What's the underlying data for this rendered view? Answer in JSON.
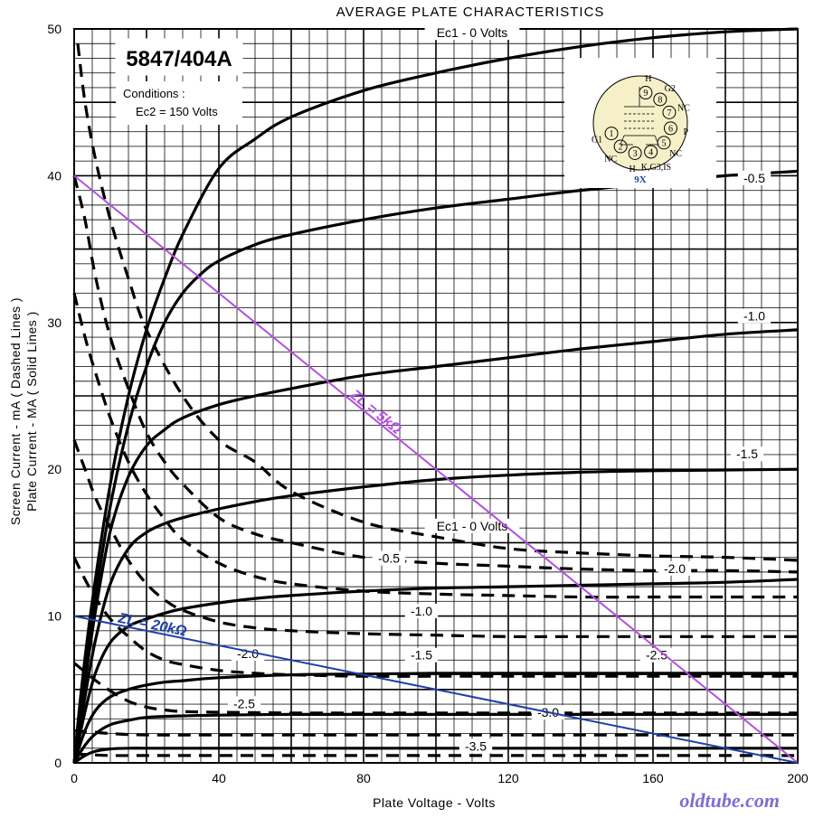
{
  "chart_data": {
    "type": "line",
    "title": "AVERAGE PLATE CHARACTERISTICS",
    "tube": "5847/404A",
    "conditions_label": "Conditions :",
    "conditions_value": "Ec2 = 150 Volts",
    "xlabel": "Plate Voltage - Volts",
    "ylabel_line1": "Screen Current - mA ( Dashed Lines )",
    "ylabel_line2": "Plate Current - MA ( Solid Lines )",
    "xlim": [
      0,
      200
    ],
    "ylim": [
      0,
      50
    ],
    "x_ticks": [
      "0",
      "40",
      "80",
      "120",
      "160",
      "200"
    ],
    "y_ticks": [
      "0",
      "10",
      "20",
      "30",
      "40",
      "50"
    ],
    "grid": true,
    "plate_series": [
      {
        "label": "Ec1 - 0 Volts",
        "line": "solid",
        "x": [
          0,
          2,
          5,
          10,
          15,
          20,
          25,
          30,
          40,
          50,
          60,
          80,
          100,
          120,
          140,
          160,
          180,
          200
        ],
        "y": [
          0,
          5,
          11,
          19,
          25,
          29.5,
          33,
          36,
          40.5,
          42.5,
          44,
          45.8,
          47,
          48,
          48.8,
          49.4,
          49.8,
          50
        ]
      },
      {
        "label": "-0.5",
        "line": "solid",
        "x": [
          0,
          3,
          6,
          10,
          15,
          20,
          25,
          30,
          35,
          40,
          50,
          60,
          80,
          100,
          120,
          140,
          160,
          180,
          200
        ],
        "y": [
          0,
          6,
          11.5,
          17.5,
          23,
          27,
          30,
          32,
          33.3,
          34.2,
          35.3,
          36,
          37,
          37.8,
          38.4,
          39,
          39.5,
          40,
          40.3
        ]
      },
      {
        "label": "-1.0",
        "line": "solid",
        "x": [
          0,
          3,
          6,
          10,
          15,
          20,
          25,
          30,
          40,
          50,
          60,
          80,
          100,
          120,
          140,
          160,
          180,
          200
        ],
        "y": [
          0,
          5.5,
          10.5,
          15.8,
          19.5,
          21.6,
          22.7,
          23.5,
          24.4,
          25,
          25.5,
          26.4,
          27,
          27.6,
          28.2,
          28.7,
          29.2,
          29.5
        ]
      },
      {
        "label": "-1.5",
        "line": "solid",
        "x": [
          0,
          3,
          6,
          10,
          15,
          20,
          25,
          30,
          40,
          50,
          60,
          80,
          100,
          120,
          140,
          160,
          180,
          200
        ],
        "y": [
          0,
          4.5,
          8.5,
          12.2,
          14.6,
          15.7,
          16.3,
          16.7,
          17.3,
          17.8,
          18.2,
          18.8,
          19.3,
          19.6,
          19.8,
          19.9,
          19.95,
          20
        ]
      },
      {
        "label": "-2.0",
        "line": "solid",
        "x": [
          0,
          3,
          6,
          10,
          15,
          20,
          25,
          30,
          40,
          50,
          60,
          80,
          100,
          120,
          140,
          160,
          180,
          200
        ],
        "y": [
          0,
          3.5,
          6.2,
          8.2,
          9.3,
          9.8,
          10.2,
          10.5,
          10.9,
          11.2,
          11.4,
          11.7,
          11.9,
          12.0,
          12.1,
          12.2,
          12.3,
          12.5
        ]
      },
      {
        "label": "-2.5",
        "line": "solid",
        "x": [
          0,
          3,
          6,
          10,
          15,
          20,
          25,
          30,
          40,
          60,
          80,
          100,
          120,
          140,
          160,
          180,
          200
        ],
        "y": [
          0,
          2.2,
          3.6,
          4.5,
          5.0,
          5.3,
          5.5,
          5.6,
          5.8,
          6.0,
          6.05,
          6.1,
          6.1,
          6.1,
          6.1,
          6.1,
          6.1
        ]
      },
      {
        "label": "-3.0",
        "line": "solid",
        "x": [
          0,
          3,
          6,
          10,
          15,
          20,
          30,
          40,
          60,
          80,
          100,
          120,
          140,
          160,
          180,
          200
        ],
        "y": [
          0,
          1.2,
          2.0,
          2.6,
          2.9,
          3.1,
          3.2,
          3.25,
          3.3,
          3.3,
          3.3,
          3.3,
          3.3,
          3.3,
          3.3,
          3.3
        ]
      },
      {
        "label": "-3.5",
        "line": "solid",
        "x": [
          0,
          3,
          6,
          10,
          15,
          20,
          30,
          40,
          60,
          80,
          100,
          120,
          140,
          160,
          180,
          200
        ],
        "y": [
          0,
          0.5,
          0.8,
          0.95,
          1.0,
          1.0,
          1.0,
          1.0,
          1.0,
          1.0,
          1.0,
          1.0,
          1.0,
          1.0,
          1.0,
          1.0
        ]
      }
    ],
    "screen_series": [
      {
        "label": "Ec1 - 0 Volts",
        "line": "dashed",
        "x": [
          1,
          3,
          6,
          10,
          15,
          20,
          30,
          40,
          50,
          60,
          80,
          100,
          120,
          140,
          160,
          180,
          200
        ],
        "y": [
          49,
          45,
          41,
          37,
          33,
          29.5,
          25,
          22,
          20.5,
          18.5,
          16.4,
          15.4,
          14.6,
          14.3,
          14.1,
          14.0,
          13.8
        ]
      },
      {
        "label": "-0.5",
        "line": "dashed",
        "x": [
          0,
          3,
          6,
          10,
          15,
          20,
          25,
          30,
          40,
          50,
          60,
          80,
          100,
          120,
          140,
          160,
          180,
          200
        ],
        "y": [
          40,
          37,
          33,
          29,
          25.5,
          22.5,
          20.5,
          19,
          16.7,
          15.6,
          15,
          14,
          13.6,
          13.4,
          13.2,
          13.1,
          13.1,
          13.0
        ]
      },
      {
        "label": "-1.0",
        "line": "dashed",
        "x": [
          0,
          3,
          6,
          10,
          15,
          20,
          25,
          30,
          40,
          50,
          60,
          80,
          100,
          120,
          140,
          160,
          180,
          200
        ],
        "y": [
          32,
          29,
          26.5,
          23.5,
          20.5,
          18.3,
          16.6,
          15.2,
          13.6,
          12.7,
          12.2,
          11.7,
          11.5,
          11.4,
          11.3,
          11.3,
          11.3,
          11.3
        ]
      },
      {
        "label": "-1.5",
        "line": "dashed",
        "x": [
          0,
          3,
          6,
          10,
          15,
          20,
          25,
          30,
          40,
          50,
          60,
          80,
          100,
          120,
          140,
          160,
          180,
          200
        ],
        "y": [
          22,
          20,
          18,
          16,
          13.8,
          12.2,
          11.1,
          10.4,
          9.6,
          9.2,
          9.0,
          8.8,
          8.7,
          8.6,
          8.6,
          8.6,
          8.6,
          8.6
        ]
      },
      {
        "label": "-2.0",
        "line": "dashed",
        "x": [
          0,
          3,
          6,
          10,
          15,
          20,
          25,
          30,
          40,
          50,
          60,
          80,
          100,
          120,
          140,
          160,
          180,
          200
        ],
        "y": [
          14,
          12.5,
          11.2,
          9.8,
          8.6,
          7.6,
          7.0,
          6.7,
          6.3,
          6.1,
          6.0,
          5.9,
          5.9,
          5.9,
          5.9,
          5.9,
          5.9,
          5.9
        ]
      },
      {
        "label": "-2.5",
        "line": "dashed",
        "x": [
          0,
          3,
          6,
          10,
          15,
          20,
          25,
          30,
          40,
          50,
          60,
          80,
          100,
          120,
          140,
          160,
          180,
          200
        ],
        "y": [
          6.8,
          6.2,
          5.6,
          4.9,
          4.2,
          3.8,
          3.6,
          3.5,
          3.45,
          3.42,
          3.4,
          3.4,
          3.4,
          3.4,
          3.4,
          3.4,
          3.4,
          3.4
        ]
      },
      {
        "label": "-3.0",
        "line": "dashed",
        "x": [
          0,
          5,
          10,
          20,
          40,
          60,
          80,
          100,
          120,
          140,
          160,
          180,
          200
        ],
        "y": [
          2.2,
          2.1,
          2.0,
          1.9,
          1.9,
          1.9,
          1.9,
          1.9,
          1.9,
          1.9,
          1.9,
          1.9,
          1.9
        ]
      },
      {
        "label": "-3.5",
        "line": "dashed",
        "x": [
          0,
          5,
          10,
          20,
          40,
          60,
          80,
          100,
          120,
          140,
          160,
          180,
          200
        ],
        "y": [
          0.6,
          0.55,
          0.5,
          0.5,
          0.5,
          0.5,
          0.5,
          0.5,
          0.5,
          0.5,
          0.5,
          0.5,
          0.5
        ]
      }
    ],
    "load_lines": [
      {
        "label": "ZL = 5kΩ",
        "color": "#b44fe0",
        "x": [
          0,
          200
        ],
        "y": [
          40,
          0
        ]
      },
      {
        "label": "ZL = 20kΩ",
        "color": "#1f3fa8",
        "x": [
          0,
          200
        ],
        "y": [
          10,
          0
        ]
      }
    ],
    "curve_labels": [
      {
        "text": "Ec1 - 0 Volts",
        "x": 110,
        "y": 49.5
      },
      {
        "text": "-0.5",
        "x": 188,
        "y": 39.6
      },
      {
        "text": "-1.0",
        "x": 188,
        "y": 30.2
      },
      {
        "text": "-1.5",
        "x": 186,
        "y": 20.8
      },
      {
        "text": "Ec1 - 0 Volts",
        "x": 110,
        "y": 15.9
      },
      {
        "text": "-0.5",
        "x": 87,
        "y": 13.7
      },
      {
        "text": "-2.0",
        "x": 166,
        "y": 13.0
      },
      {
        "text": "-1.0",
        "x": 96,
        "y": 10.1
      },
      {
        "text": "-1.5",
        "x": 96,
        "y": 7.1
      },
      {
        "text": "-2.0",
        "x": 48,
        "y": 7.2
      },
      {
        "text": "-2.5",
        "x": 161,
        "y": 7.1
      },
      {
        "text": "-2.5",
        "x": 47,
        "y": 3.8
      },
      {
        "text": "-3.0",
        "x": 131,
        "y": 3.2
      },
      {
        "text": "-3.5",
        "x": 111,
        "y": 0.9
      }
    ],
    "pin_diagram": {
      "base": "9X",
      "pins": [
        {
          "num": "1",
          "name": "G1"
        },
        {
          "num": "2",
          "name": "NC"
        },
        {
          "num": "3",
          "name": "H"
        },
        {
          "num": "4",
          "name": "K,G3,IS"
        },
        {
          "num": "5",
          "name": "NC"
        },
        {
          "num": "6",
          "name": "P"
        },
        {
          "num": "7",
          "name": "NC"
        },
        {
          "num": "8",
          "name": "G2"
        },
        {
          "num": "9",
          "name": "H"
        }
      ]
    },
    "watermark": "oldtube.com"
  }
}
